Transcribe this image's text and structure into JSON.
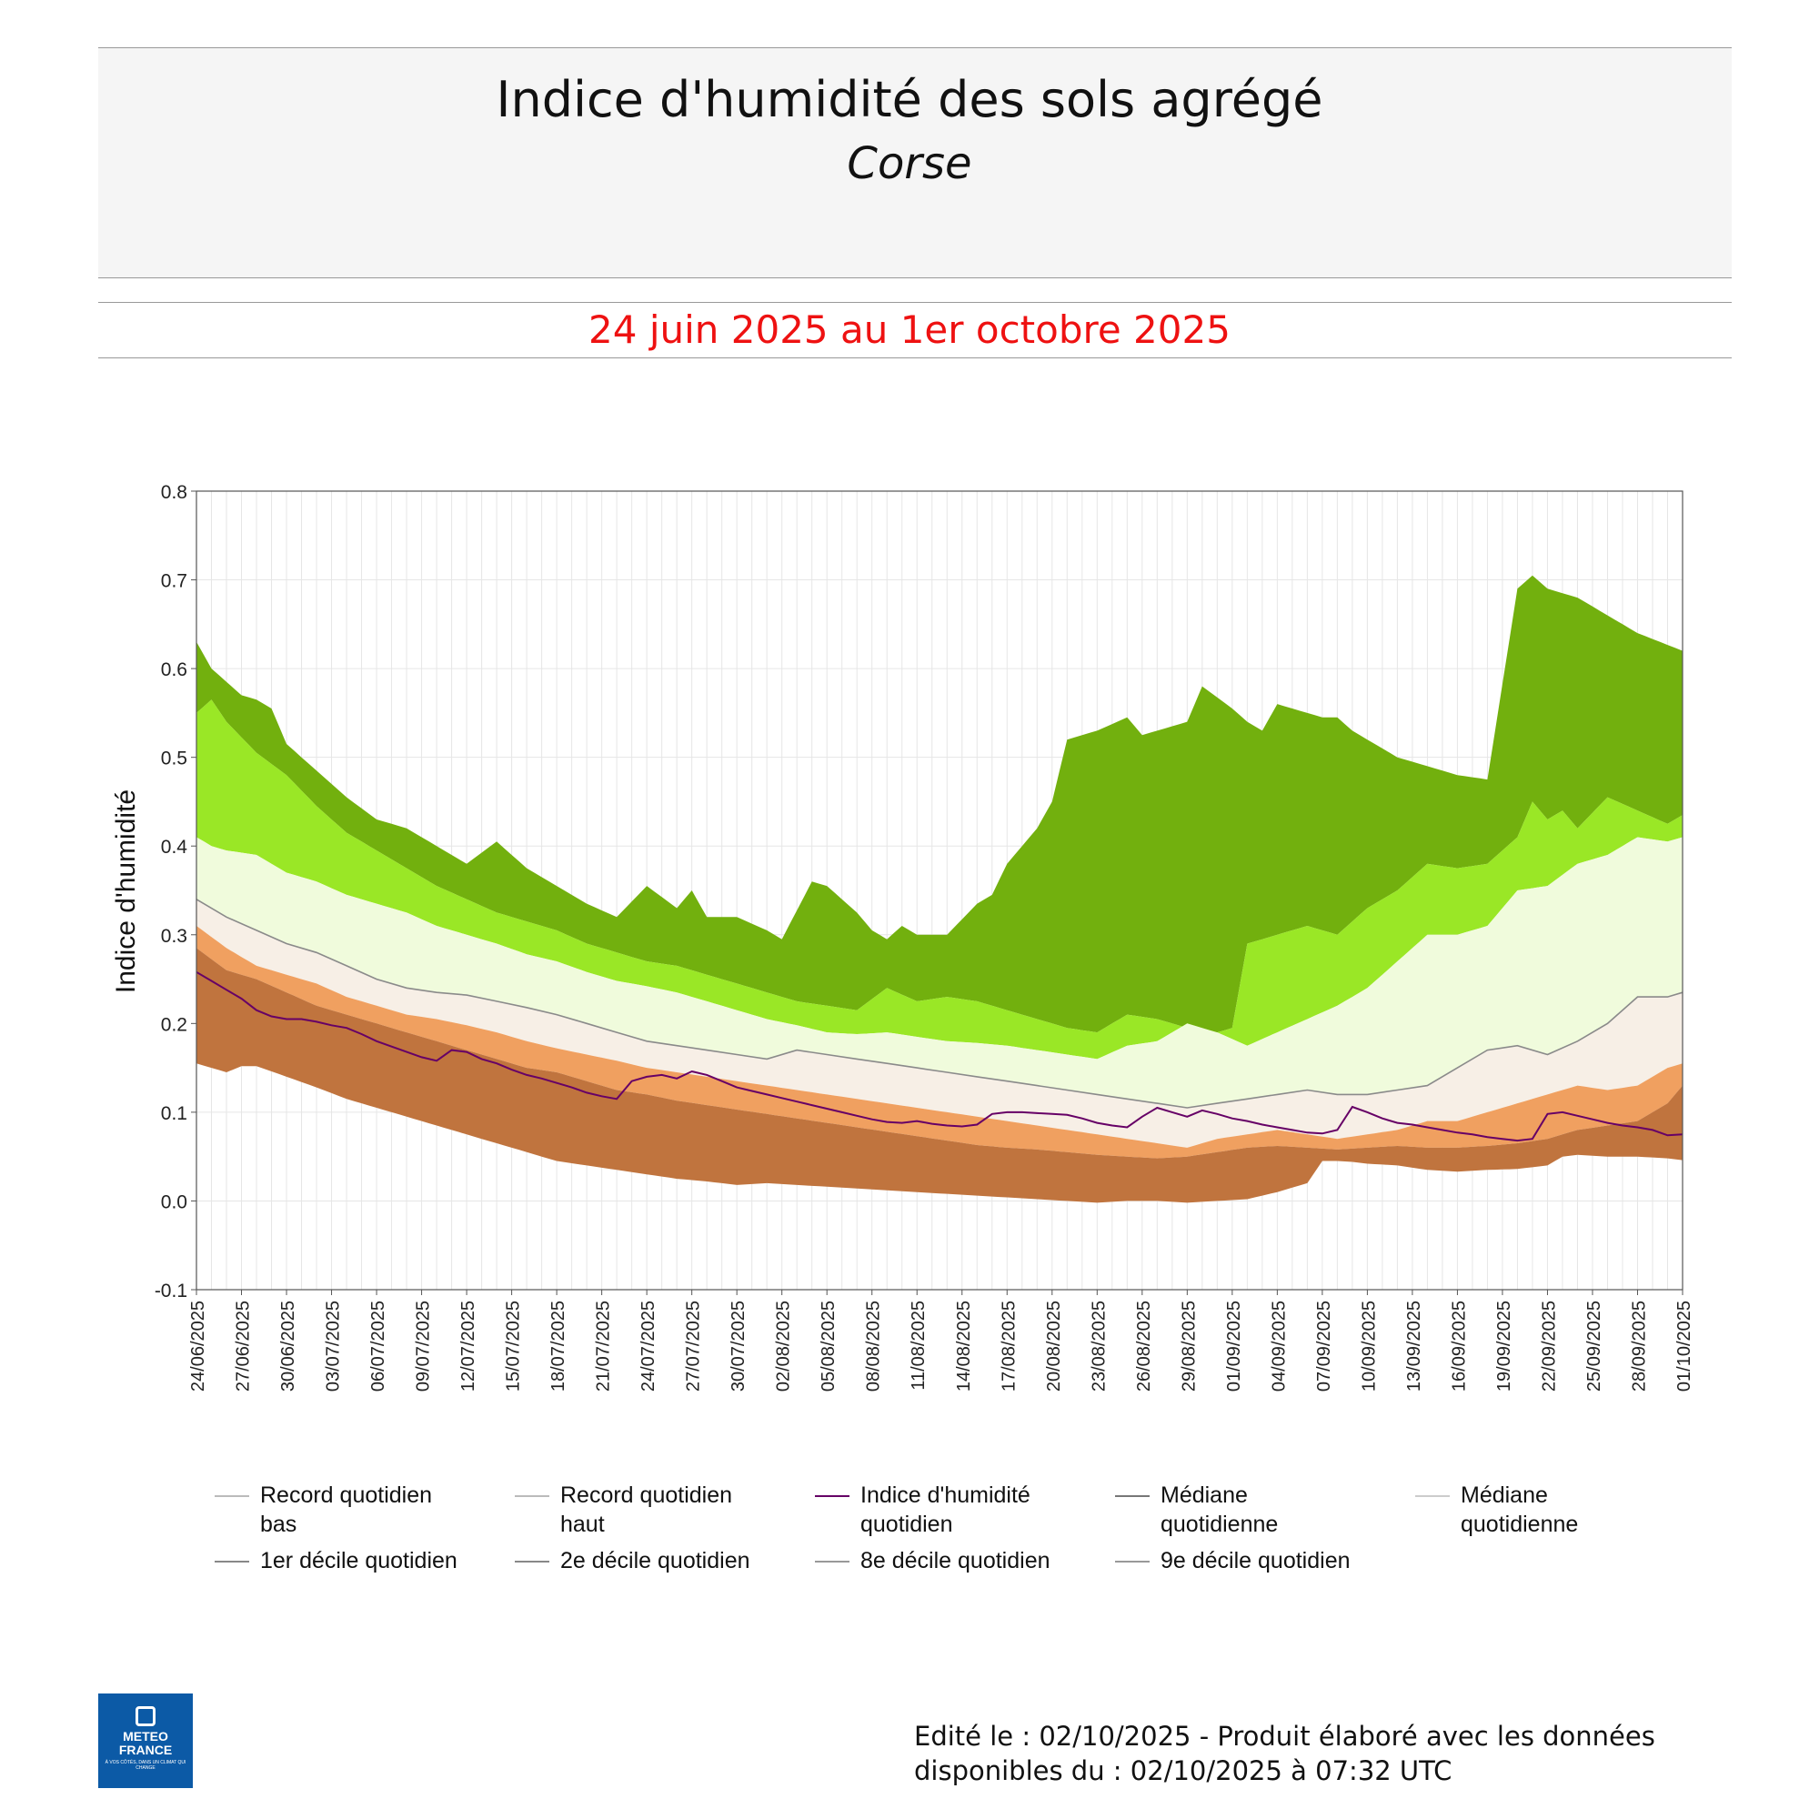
{
  "header": {
    "title": "Indice d'humidité des sols agrégé",
    "subtitle": "Corse",
    "period": "24 juin 2025 au 1er octobre 2025"
  },
  "footer": {
    "line1": "Edité le : 02/10/2025 - Produit élaboré avec les données",
    "line2": "disponibles du : 02/10/2025 à 07:32 UTC"
  },
  "logo": {
    "name": "METEO FRANCE",
    "tagline": "À VOS CÔTÉS, DANS UN CLIMAT QUI CHANGE"
  },
  "colors": {
    "record_high_band": "#72b00e",
    "decile9_band": "#9ae726",
    "decile8_band": "#f0fbdc",
    "median_band": "#f7efe6",
    "decile2_band": "#f0a060",
    "decile1_band": "#c0743e",
    "index_line": "#660066"
  },
  "chart_data": {
    "type": "area",
    "title": "Indice d'humidité des sols agrégé",
    "ylabel": "Indice d'humidité",
    "xlabel": "",
    "ylim": [
      -0.1,
      0.8
    ],
    "yticks": [
      "0.8",
      "0.7",
      "0.6",
      "0.5",
      "0.4",
      "0.3",
      "0.2",
      "0.1",
      "0.0",
      "-0.1"
    ],
    "grid": true,
    "x_ticks": [
      "24/06/2025",
      "27/06/2025",
      "30/06/2025",
      "03/07/2025",
      "06/07/2025",
      "09/07/2025",
      "12/07/2025",
      "15/07/2025",
      "18/07/2025",
      "21/07/2025",
      "24/07/2025",
      "27/07/2025",
      "30/07/2025",
      "02/08/2025",
      "05/08/2025",
      "08/08/2025",
      "11/08/2025",
      "14/08/2025",
      "17/08/2025",
      "20/08/2025",
      "23/08/2025",
      "26/08/2025",
      "29/08/2025",
      "01/09/2025",
      "04/09/2025",
      "07/09/2025",
      "10/09/2025",
      "13/09/2025",
      "16/09/2025",
      "19/09/2025",
      "22/09/2025",
      "25/09/2025",
      "28/09/2025",
      "01/10/2025"
    ],
    "x_tick_days": [
      0,
      3,
      6,
      9,
      12,
      15,
      18,
      21,
      24,
      27,
      30,
      33,
      36,
      39,
      42,
      45,
      48,
      51,
      54,
      57,
      60,
      63,
      66,
      69,
      72,
      75,
      78,
      81,
      84,
      87,
      90,
      93,
      96,
      99
    ],
    "legend_position": "bottom",
    "legend": [
      "Record quotidien bas",
      "Record quotidien haut",
      "Indice d'humidité quotidien",
      "Médiane quotidienne",
      "Médiane quotidienne",
      "1er décile quotidien",
      "2e décile quotidien",
      "8e décile quotidien",
      "9e décile quotidien"
    ],
    "series": [
      {
        "name": "Record quotidien haut",
        "x": [
          0,
          1,
          2,
          3,
          4,
          5,
          6,
          8,
          10,
          12,
          14,
          16,
          18,
          20,
          22,
          24,
          26,
          28,
          30,
          32,
          33,
          34,
          36,
          38,
          39,
          41,
          42,
          44,
          45,
          46,
          47,
          48,
          50,
          52,
          53,
          54,
          56,
          57,
          58,
          60,
          62,
          63,
          64,
          66,
          67,
          69,
          70,
          71,
          72,
          74,
          75,
          76,
          77,
          78,
          79,
          80,
          82,
          84,
          86,
          88,
          89,
          90,
          91,
          92,
          94,
          96,
          99
        ],
        "values": [
          0.63,
          0.6,
          0.585,
          0.57,
          0.565,
          0.555,
          0.515,
          0.485,
          0.455,
          0.43,
          0.42,
          0.4,
          0.38,
          0.405,
          0.375,
          0.355,
          0.335,
          0.32,
          0.355,
          0.33,
          0.35,
          0.32,
          0.32,
          0.305,
          0.295,
          0.36,
          0.355,
          0.325,
          0.305,
          0.295,
          0.31,
          0.3,
          0.3,
          0.335,
          0.345,
          0.38,
          0.42,
          0.45,
          0.52,
          0.53,
          0.545,
          0.525,
          0.53,
          0.54,
          0.58,
          0.555,
          0.54,
          0.53,
          0.56,
          0.55,
          0.545,
          0.545,
          0.53,
          0.52,
          0.51,
          0.5,
          0.49,
          0.48,
          0.475,
          0.69,
          0.705,
          0.69,
          0.685,
          0.68,
          0.66,
          0.64,
          0.62
        ]
      },
      {
        "name": "9e décile quotidien",
        "x": [
          0,
          1,
          2,
          4,
          6,
          8,
          10,
          12,
          14,
          16,
          18,
          20,
          22,
          24,
          26,
          28,
          30,
          32,
          34,
          36,
          38,
          40,
          42,
          44,
          46,
          48,
          50,
          52,
          54,
          56,
          58,
          60,
          62,
          64,
          66,
          68,
          69,
          70,
          72,
          74,
          76,
          78,
          80,
          82,
          84,
          86,
          88,
          89,
          90,
          91,
          92,
          94,
          96,
          98,
          99
        ],
        "values": [
          0.55,
          0.565,
          0.54,
          0.505,
          0.48,
          0.445,
          0.415,
          0.395,
          0.375,
          0.355,
          0.34,
          0.325,
          0.315,
          0.305,
          0.29,
          0.28,
          0.27,
          0.265,
          0.255,
          0.245,
          0.235,
          0.225,
          0.22,
          0.215,
          0.24,
          0.225,
          0.23,
          0.225,
          0.215,
          0.205,
          0.195,
          0.19,
          0.21,
          0.205,
          0.195,
          0.19,
          0.195,
          0.29,
          0.3,
          0.31,
          0.3,
          0.33,
          0.35,
          0.38,
          0.375,
          0.38,
          0.41,
          0.45,
          0.43,
          0.44,
          0.42,
          0.455,
          0.44,
          0.425,
          0.435
        ]
      },
      {
        "name": "8e décile quotidien",
        "x": [
          0,
          1,
          2,
          4,
          6,
          8,
          10,
          12,
          14,
          16,
          18,
          20,
          22,
          24,
          26,
          28,
          30,
          32,
          34,
          36,
          38,
          40,
          42,
          44,
          46,
          48,
          50,
          52,
          54,
          56,
          58,
          60,
          62,
          64,
          66,
          68,
          70,
          72,
          74,
          76,
          78,
          80,
          82,
          84,
          86,
          88,
          90,
          92,
          94,
          96,
          98,
          99
        ],
        "values": [
          0.41,
          0.4,
          0.395,
          0.39,
          0.37,
          0.36,
          0.345,
          0.335,
          0.325,
          0.31,
          0.3,
          0.29,
          0.278,
          0.27,
          0.258,
          0.248,
          0.242,
          0.235,
          0.225,
          0.215,
          0.205,
          0.198,
          0.19,
          0.188,
          0.19,
          0.185,
          0.18,
          0.178,
          0.175,
          0.17,
          0.165,
          0.16,
          0.175,
          0.18,
          0.2,
          0.19,
          0.175,
          0.19,
          0.205,
          0.22,
          0.24,
          0.27,
          0.3,
          0.3,
          0.31,
          0.35,
          0.355,
          0.38,
          0.39,
          0.41,
          0.405,
          0.41
        ]
      },
      {
        "name": "Médiane quotidienne",
        "x": [
          0,
          2,
          4,
          6,
          8,
          10,
          12,
          14,
          16,
          18,
          20,
          22,
          24,
          26,
          28,
          30,
          32,
          34,
          36,
          38,
          40,
          42,
          44,
          46,
          48,
          50,
          52,
          54,
          56,
          58,
          60,
          62,
          64,
          66,
          68,
          70,
          72,
          74,
          76,
          78,
          80,
          82,
          84,
          86,
          88,
          90,
          92,
          94,
          96,
          98,
          99
        ],
        "values": [
          0.34,
          0.32,
          0.305,
          0.29,
          0.28,
          0.265,
          0.25,
          0.24,
          0.235,
          0.232,
          0.225,
          0.218,
          0.21,
          0.2,
          0.19,
          0.18,
          0.175,
          0.17,
          0.165,
          0.16,
          0.17,
          0.165,
          0.16,
          0.155,
          0.15,
          0.145,
          0.14,
          0.135,
          0.13,
          0.125,
          0.12,
          0.115,
          0.11,
          0.105,
          0.11,
          0.115,
          0.12,
          0.125,
          0.12,
          0.12,
          0.125,
          0.13,
          0.15,
          0.17,
          0.175,
          0.165,
          0.18,
          0.2,
          0.23,
          0.23,
          0.235
        ]
      },
      {
        "name": "2e décile quotidien",
        "x": [
          0,
          2,
          4,
          6,
          8,
          10,
          12,
          14,
          16,
          18,
          20,
          22,
          24,
          26,
          28,
          30,
          32,
          34,
          36,
          38,
          40,
          42,
          44,
          46,
          48,
          50,
          52,
          54,
          56,
          58,
          60,
          62,
          64,
          66,
          68,
          70,
          72,
          74,
          76,
          78,
          80,
          82,
          84,
          86,
          88,
          90,
          92,
          94,
          96,
          98,
          99
        ],
        "values": [
          0.31,
          0.285,
          0.265,
          0.255,
          0.245,
          0.23,
          0.22,
          0.21,
          0.205,
          0.198,
          0.19,
          0.18,
          0.172,
          0.165,
          0.158,
          0.15,
          0.145,
          0.14,
          0.135,
          0.13,
          0.125,
          0.12,
          0.115,
          0.11,
          0.105,
          0.1,
          0.095,
          0.09,
          0.085,
          0.08,
          0.075,
          0.07,
          0.065,
          0.06,
          0.07,
          0.075,
          0.08,
          0.075,
          0.07,
          0.075,
          0.08,
          0.09,
          0.09,
          0.1,
          0.11,
          0.12,
          0.13,
          0.125,
          0.13,
          0.15,
          0.155
        ]
      },
      {
        "name": "1er décile quotidien",
        "x": [
          0,
          2,
          4,
          6,
          8,
          10,
          12,
          14,
          16,
          18,
          20,
          22,
          24,
          26,
          28,
          30,
          32,
          34,
          36,
          38,
          40,
          42,
          44,
          46,
          48,
          50,
          52,
          54,
          56,
          58,
          60,
          62,
          64,
          66,
          68,
          70,
          72,
          74,
          76,
          78,
          80,
          82,
          84,
          86,
          88,
          90,
          92,
          94,
          96,
          98,
          99
        ],
        "values": [
          0.285,
          0.26,
          0.25,
          0.235,
          0.22,
          0.21,
          0.2,
          0.19,
          0.18,
          0.17,
          0.16,
          0.15,
          0.145,
          0.135,
          0.125,
          0.12,
          0.113,
          0.108,
          0.103,
          0.098,
          0.093,
          0.088,
          0.083,
          0.078,
          0.073,
          0.068,
          0.063,
          0.06,
          0.058,
          0.055,
          0.052,
          0.05,
          0.048,
          0.05,
          0.055,
          0.06,
          0.062,
          0.06,
          0.058,
          0.06,
          0.062,
          0.06,
          0.06,
          0.062,
          0.065,
          0.07,
          0.08,
          0.085,
          0.09,
          0.11,
          0.13
        ]
      },
      {
        "name": "Record quotidien bas",
        "x": [
          0,
          2,
          3,
          4,
          6,
          8,
          10,
          12,
          14,
          16,
          18,
          20,
          22,
          24,
          26,
          28,
          30,
          32,
          34,
          36,
          38,
          40,
          42,
          44,
          46,
          48,
          50,
          52,
          54,
          56,
          58,
          60,
          62,
          64,
          66,
          68,
          70,
          72,
          74,
          75,
          76,
          77,
          78,
          80,
          82,
          84,
          86,
          88,
          90,
          91,
          92,
          94,
          96,
          98,
          99
        ],
        "values": [
          0.155,
          0.145,
          0.152,
          0.152,
          0.14,
          0.128,
          0.115,
          0.105,
          0.095,
          0.085,
          0.075,
          0.065,
          0.055,
          0.045,
          0.04,
          0.035,
          0.03,
          0.025,
          0.022,
          0.018,
          0.02,
          0.018,
          0.016,
          0.014,
          0.012,
          0.01,
          0.008,
          0.006,
          0.004,
          0.002,
          0.0,
          -0.002,
          0.0,
          0.0,
          -0.002,
          0.0,
          0.002,
          0.01,
          0.02,
          0.045,
          0.045,
          0.044,
          0.042,
          0.04,
          0.035,
          0.033,
          0.035,
          0.036,
          0.04,
          0.05,
          0.052,
          0.05,
          0.05,
          0.048,
          0.046
        ]
      },
      {
        "name": "Indice d'humidité quotidien",
        "x": [
          0,
          1,
          2,
          3,
          4,
          5,
          6,
          7,
          8,
          9,
          10,
          11,
          12,
          13,
          14,
          15,
          16,
          17,
          18,
          19,
          20,
          21,
          22,
          23,
          24,
          25,
          26,
          27,
          28,
          29,
          30,
          31,
          32,
          33,
          34,
          35,
          36,
          37,
          38,
          39,
          40,
          41,
          42,
          43,
          44,
          45,
          46,
          47,
          48,
          49,
          50,
          51,
          52,
          53,
          54,
          55,
          56,
          57,
          58,
          59,
          60,
          61,
          62,
          63,
          64,
          65,
          66,
          67,
          68,
          69,
          70,
          71,
          72,
          73,
          74,
          75,
          76,
          77,
          78,
          79,
          80,
          81,
          82,
          83,
          84,
          85,
          86,
          87,
          88,
          89,
          90,
          91,
          92,
          93,
          94,
          95,
          96,
          97,
          98,
          99
        ],
        "values": [
          0.258,
          0.248,
          0.238,
          0.228,
          0.215,
          0.208,
          0.205,
          0.205,
          0.202,
          0.198,
          0.195,
          0.188,
          0.18,
          0.174,
          0.168,
          0.162,
          0.158,
          0.17,
          0.168,
          0.16,
          0.155,
          0.148,
          0.142,
          0.138,
          0.133,
          0.128,
          0.122,
          0.118,
          0.115,
          0.135,
          0.14,
          0.142,
          0.138,
          0.146,
          0.142,
          0.135,
          0.128,
          0.124,
          0.12,
          0.116,
          0.112,
          0.108,
          0.104,
          0.1,
          0.096,
          0.092,
          0.089,
          0.088,
          0.09,
          0.087,
          0.085,
          0.084,
          0.086,
          0.098,
          0.1,
          0.1,
          0.099,
          0.098,
          0.097,
          0.093,
          0.088,
          0.085,
          0.083,
          0.095,
          0.105,
          0.1,
          0.095,
          0.102,
          0.098,
          0.093,
          0.09,
          0.086,
          0.083,
          0.08,
          0.077,
          0.076,
          0.08,
          0.106,
          0.1,
          0.093,
          0.088,
          0.086,
          0.083,
          0.08,
          0.077,
          0.075,
          0.072,
          0.07,
          0.068,
          0.07,
          0.098,
          0.1,
          0.096,
          0.092,
          0.088,
          0.085,
          0.083,
          0.08,
          0.074,
          0.075
        ]
      }
    ]
  }
}
